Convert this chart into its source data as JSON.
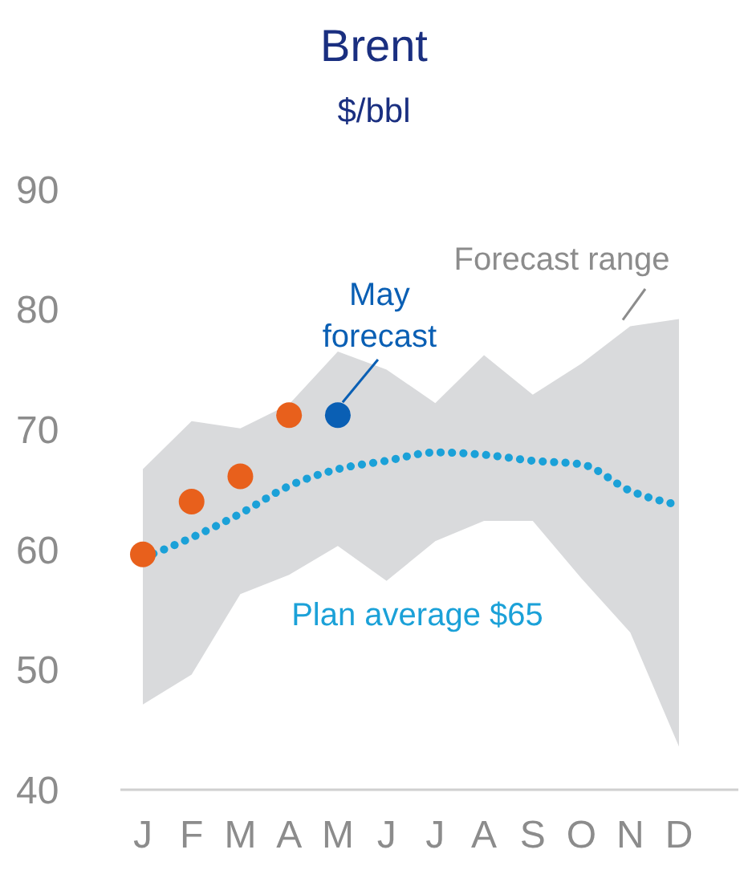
{
  "chart_data": {
    "type": "line",
    "title": "Brent",
    "subtitle": "$/bbl",
    "categories": [
      "J",
      "F",
      "M",
      "A",
      "M",
      "J",
      "J",
      "A",
      "S",
      "O",
      "N",
      "D"
    ],
    "ylim": [
      40,
      90
    ],
    "yticks": [
      40,
      50,
      60,
      70,
      80,
      90
    ],
    "grid": false,
    "series": [
      {
        "name": "Plan average $65",
        "line_style": "dotted",
        "color": "#1ba1d8",
        "values": [
          59.3,
          61,
          63,
          65.3,
          66.7,
          67.4,
          68.1,
          67.9,
          67.4,
          67.1,
          64.9,
          63.7
        ],
        "lower": [
          47.1,
          49.6,
          56.3,
          57.9,
          60.3,
          57.4,
          60.7,
          62.4,
          62.4,
          57.6,
          53.1,
          43.6
        ],
        "upper": [
          66.7,
          70.7,
          70.1,
          72.1,
          76.5,
          75,
          72.2,
          76.2,
          72.9,
          75.5,
          78.6,
          79.2
        ]
      },
      {
        "type": "scatter",
        "marker": "circle",
        "color": "#e8601c",
        "values": [
          59.6,
          64,
          66.1,
          71.2,
          null,
          null,
          null,
          null,
          null,
          null,
          null,
          null
        ]
      },
      {
        "type": "scatter",
        "marker": "circle",
        "color": "#0a5fb4",
        "values": [
          null,
          null,
          null,
          null,
          71.2,
          null,
          null,
          null,
          null,
          null,
          null,
          null
        ]
      }
    ],
    "annotations": [
      "May forecast",
      "Forecast range"
    ]
  }
}
